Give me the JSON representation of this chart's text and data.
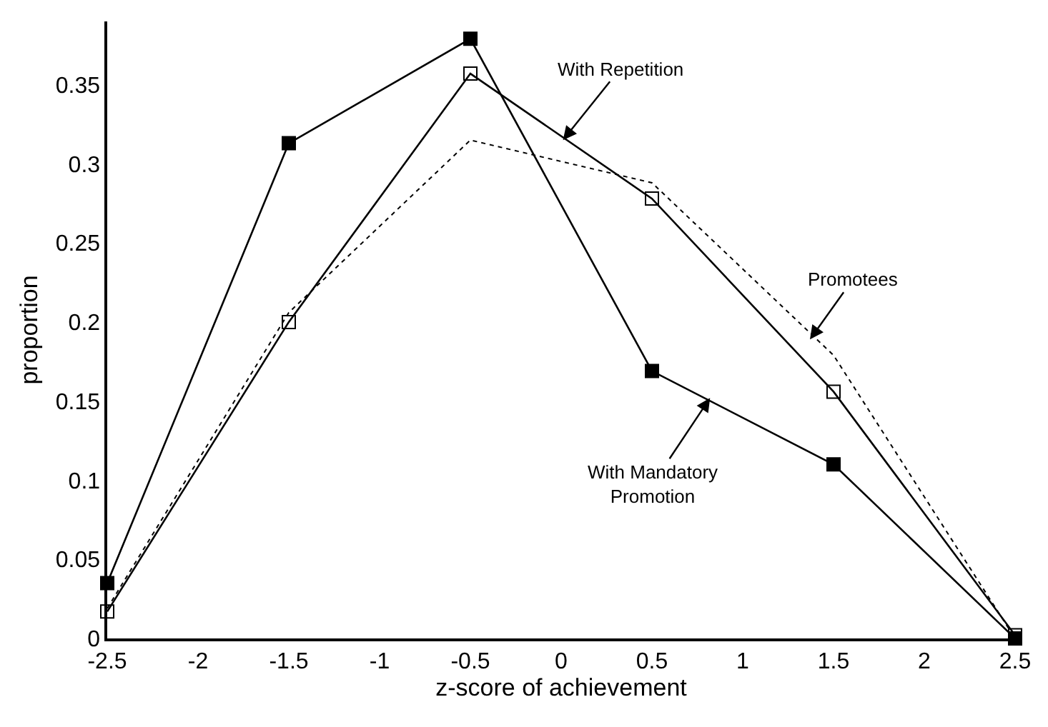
{
  "chart_data": {
    "type": "line",
    "xlabel": "z-score of achievement",
    "ylabel": "proportion",
    "x": [
      -2.5,
      -1.5,
      -0.5,
      0.5,
      1.5,
      2.5
    ],
    "xlim": [
      -2.5,
      2.5
    ],
    "xticks": [
      -2.5,
      -2,
      -1.5,
      -1,
      -0.5,
      0,
      0.5,
      1,
      1.5,
      2,
      2.5
    ],
    "ylim": [
      0,
      0.39
    ],
    "yticks": [
      0,
      0.05,
      0.1,
      0.15,
      0.2,
      0.25,
      0.3,
      0.35
    ],
    "series": [
      {
        "color": "#000000",
        "marker": "square",
        "line_style": "solid",
        "values": [
          0.035,
          0.313,
          0.379,
          0.169,
          0.11,
          0
        ]
      },
      {
        "color": "#000000",
        "marker": "square-open",
        "line_style": "solid",
        "values": [
          0.017,
          0.2,
          0.357,
          0.278,
          0.156,
          0.002
        ]
      },
      {
        "color": "#000000",
        "marker": "none",
        "line_style": "dotted",
        "values": [
          0.019,
          0.206,
          0.315,
          0.288,
          0.179,
          0
        ]
      }
    ],
    "annotations": [
      {
        "text": "With Repetition",
        "x": 0.01,
        "y": 0.315
      },
      {
        "text": "Promotees",
        "x": 1.37,
        "y": 0.189
      },
      {
        "text": "With Mandatory\nPromotion",
        "x": 0.82,
        "y": 0.152
      }
    ]
  }
}
